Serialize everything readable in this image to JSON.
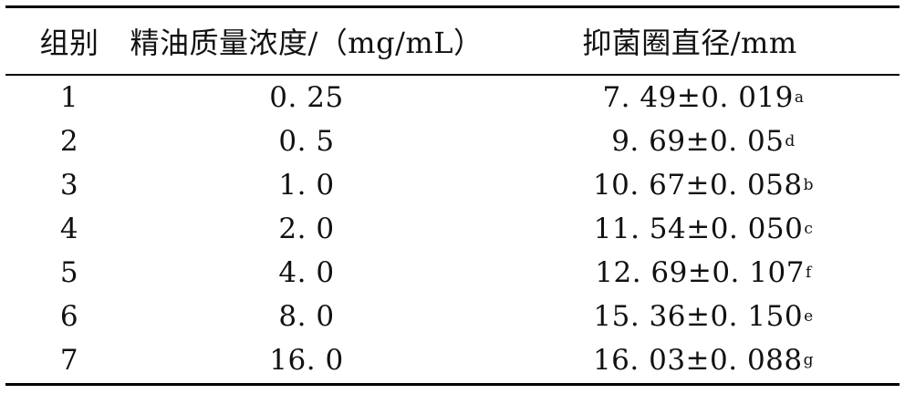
{
  "table": {
    "headers": [
      "组别",
      "精油质量浓度/（mg/mL）",
      "抑菌圈直径/mm"
    ],
    "rows": [
      {
        "group": "1",
        "concentration": "0. 25",
        "diameter": "7. 49±0. 019",
        "sig": "a"
      },
      {
        "group": "2",
        "concentration": "0. 5",
        "diameter": "9. 69±0. 05",
        "sig": "d"
      },
      {
        "group": "3",
        "concentration": "1. 0",
        "diameter": "10. 67±0. 058",
        "sig": "b"
      },
      {
        "group": "4",
        "concentration": "2. 0",
        "diameter": "11. 54±0. 050",
        "sig": "c"
      },
      {
        "group": "5",
        "concentration": "4. 0",
        "diameter": "12. 69±0. 107",
        "sig": "f"
      },
      {
        "group": "6",
        "concentration": "8. 0",
        "diameter": "15. 36±0. 150",
        "sig": "e"
      },
      {
        "group": "7",
        "concentration": "16. 0",
        "diameter": "16. 03±0. 088",
        "sig": "g"
      }
    ]
  }
}
